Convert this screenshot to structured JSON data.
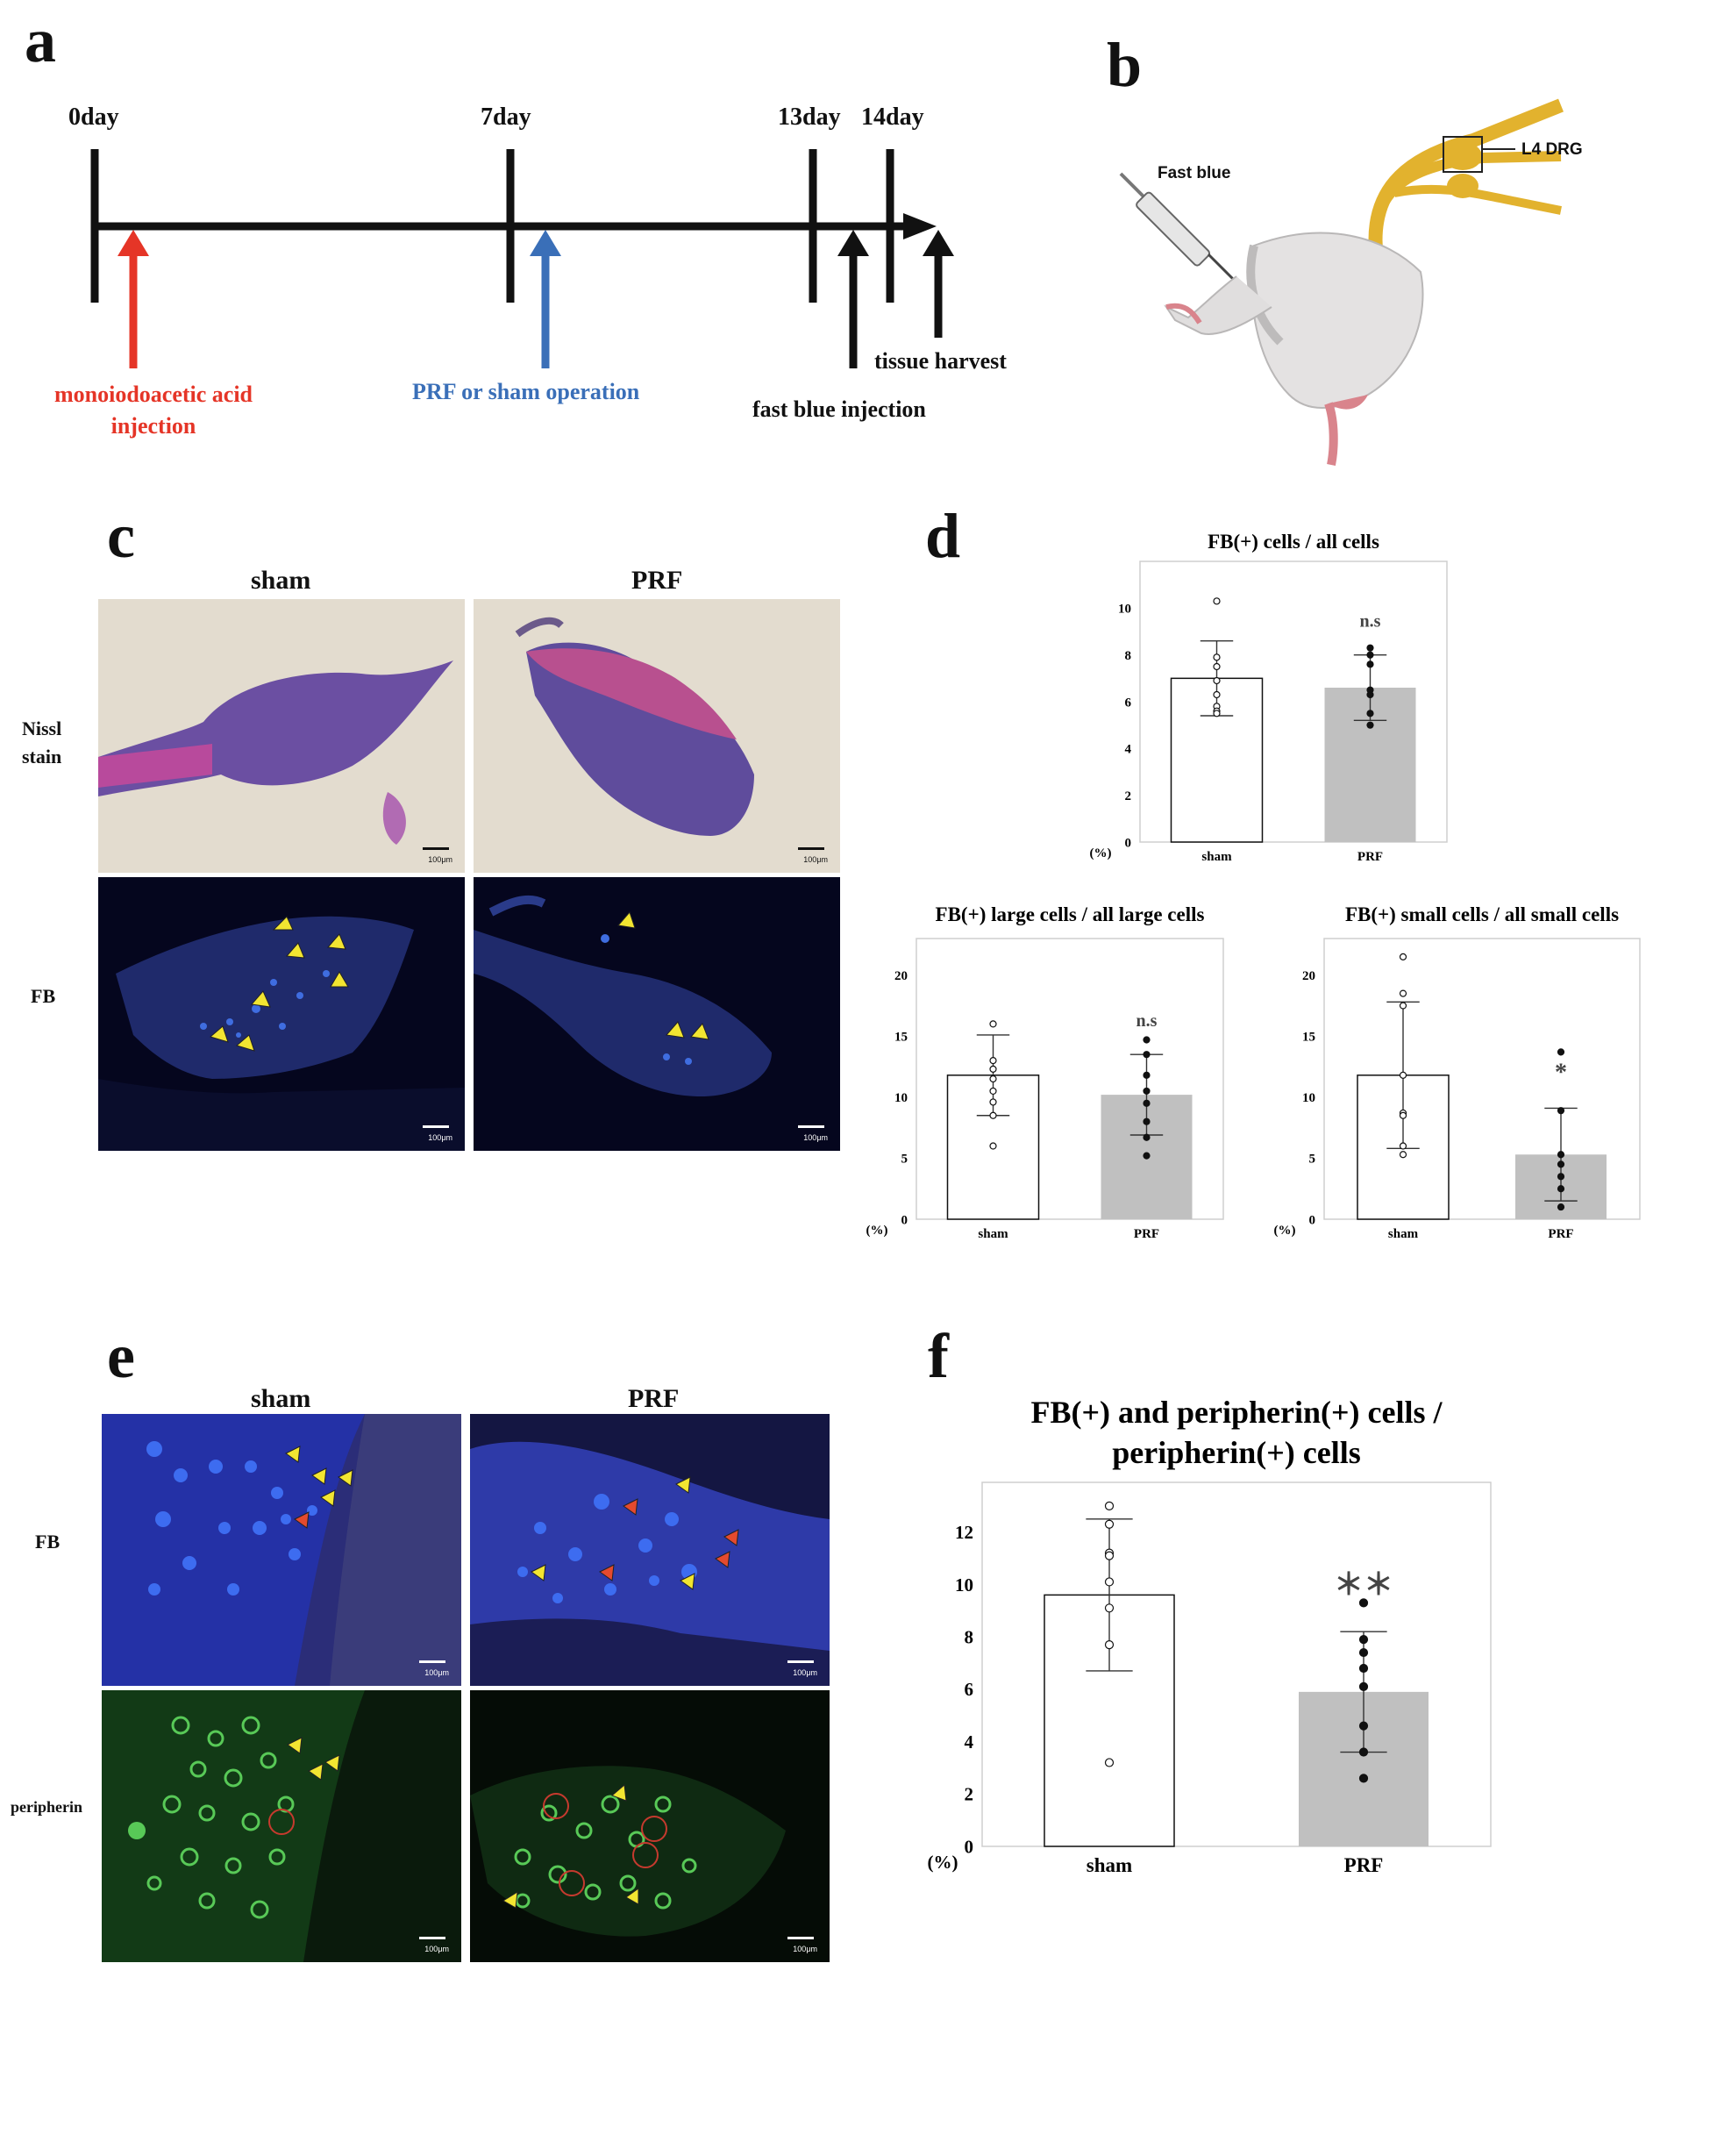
{
  "panels": {
    "a": "a",
    "b": "b",
    "c": "c",
    "d": "d",
    "e": "e",
    "f": "f"
  },
  "timeline": {
    "days": [
      "0day",
      "7day",
      "13day",
      "14day"
    ],
    "events": {
      "mia": [
        "monoiodoacetic acid",
        "injection"
      ],
      "prf": "PRF or sham operation",
      "fastblue": "fast blue injection",
      "harvest": "tissue harvest"
    },
    "colors": {
      "mia": "#e53527",
      "prf": "#3a6fb8",
      "black": "#111111"
    }
  },
  "schematic": {
    "fastblue_label": "Fast blue",
    "drg_label": "L4 DRG"
  },
  "panel_c": {
    "col_sham": "sham",
    "col_prf": "PRF",
    "row_nissl": [
      "Nissl",
      "stain"
    ],
    "row_fb": "FB",
    "scale": "100μm"
  },
  "panel_e": {
    "col_sham": "sham",
    "col_prf": "PRF",
    "row_fb": "FB",
    "row_peripherin": "peripherin",
    "scale": "100μm"
  },
  "chart_data": [
    {
      "type": "bar",
      "title": "FB(+) cells / all cells",
      "ylabel": "(%)",
      "ylim": [
        0,
        12
      ],
      "yticks": [
        0,
        2,
        4,
        6,
        8,
        10
      ],
      "categories": [
        "sham",
        "PRF"
      ],
      "values": [
        7.0,
        6.6
      ],
      "sd": [
        1.6,
        1.4
      ],
      "points": [
        [
          10.3,
          7.9,
          7.5,
          6.9,
          6.3,
          5.8,
          5.6,
          5.5
        ],
        [
          8.3,
          8.0,
          7.6,
          6.5,
          6.3,
          5.5,
          5.0
        ]
      ],
      "significance": [
        "",
        "n.s"
      ]
    },
    {
      "type": "bar",
      "title": "FB(+) large cells / all large cells",
      "ylabel": "(%)",
      "ylim": [
        0,
        23
      ],
      "yticks": [
        0,
        5,
        10,
        15,
        20
      ],
      "categories": [
        "sham",
        "PRF"
      ],
      "values": [
        11.8,
        10.2
      ],
      "sd": [
        3.3,
        3.3
      ],
      "points": [
        [
          16.0,
          13.0,
          12.3,
          11.5,
          10.5,
          9.6,
          8.5,
          6.0
        ],
        [
          14.7,
          13.5,
          11.8,
          10.5,
          9.5,
          8.0,
          6.7,
          5.2
        ]
      ],
      "significance": [
        "",
        "n.s"
      ]
    },
    {
      "type": "bar",
      "title": "FB(+) small cells / all small cells",
      "ylabel": "(%)",
      "ylim": [
        0,
        23
      ],
      "yticks": [
        0,
        5,
        10,
        15,
        20
      ],
      "categories": [
        "sham",
        "PRF"
      ],
      "values": [
        11.8,
        5.3
      ],
      "sd": [
        6.0,
        3.8
      ],
      "points": [
        [
          21.5,
          18.5,
          17.5,
          11.8,
          8.7,
          8.5,
          6.0,
          5.3
        ],
        [
          13.7,
          8.9,
          5.3,
          4.5,
          3.5,
          2.5,
          1.0
        ]
      ],
      "significance": [
        "",
        "*"
      ]
    },
    {
      "type": "bar",
      "title": [
        "FB(+) and peripherin(+) cells /",
        "peripherin(+) cells"
      ],
      "ylabel": "(%)",
      "ylim": [
        0,
        13.9
      ],
      "yticks": [
        0,
        2,
        4,
        6,
        8,
        10,
        12
      ],
      "categories": [
        "sham",
        "PRF"
      ],
      "values": [
        9.6,
        5.9
      ],
      "sd": [
        2.9,
        2.3
      ],
      "points": [
        [
          13.0,
          12.3,
          11.2,
          11.1,
          10.1,
          9.1,
          7.7,
          3.2
        ],
        [
          9.3,
          7.9,
          7.4,
          6.8,
          6.1,
          4.6,
          3.6,
          2.6
        ]
      ],
      "significance": [
        "",
        "＊＊"
      ]
    }
  ]
}
